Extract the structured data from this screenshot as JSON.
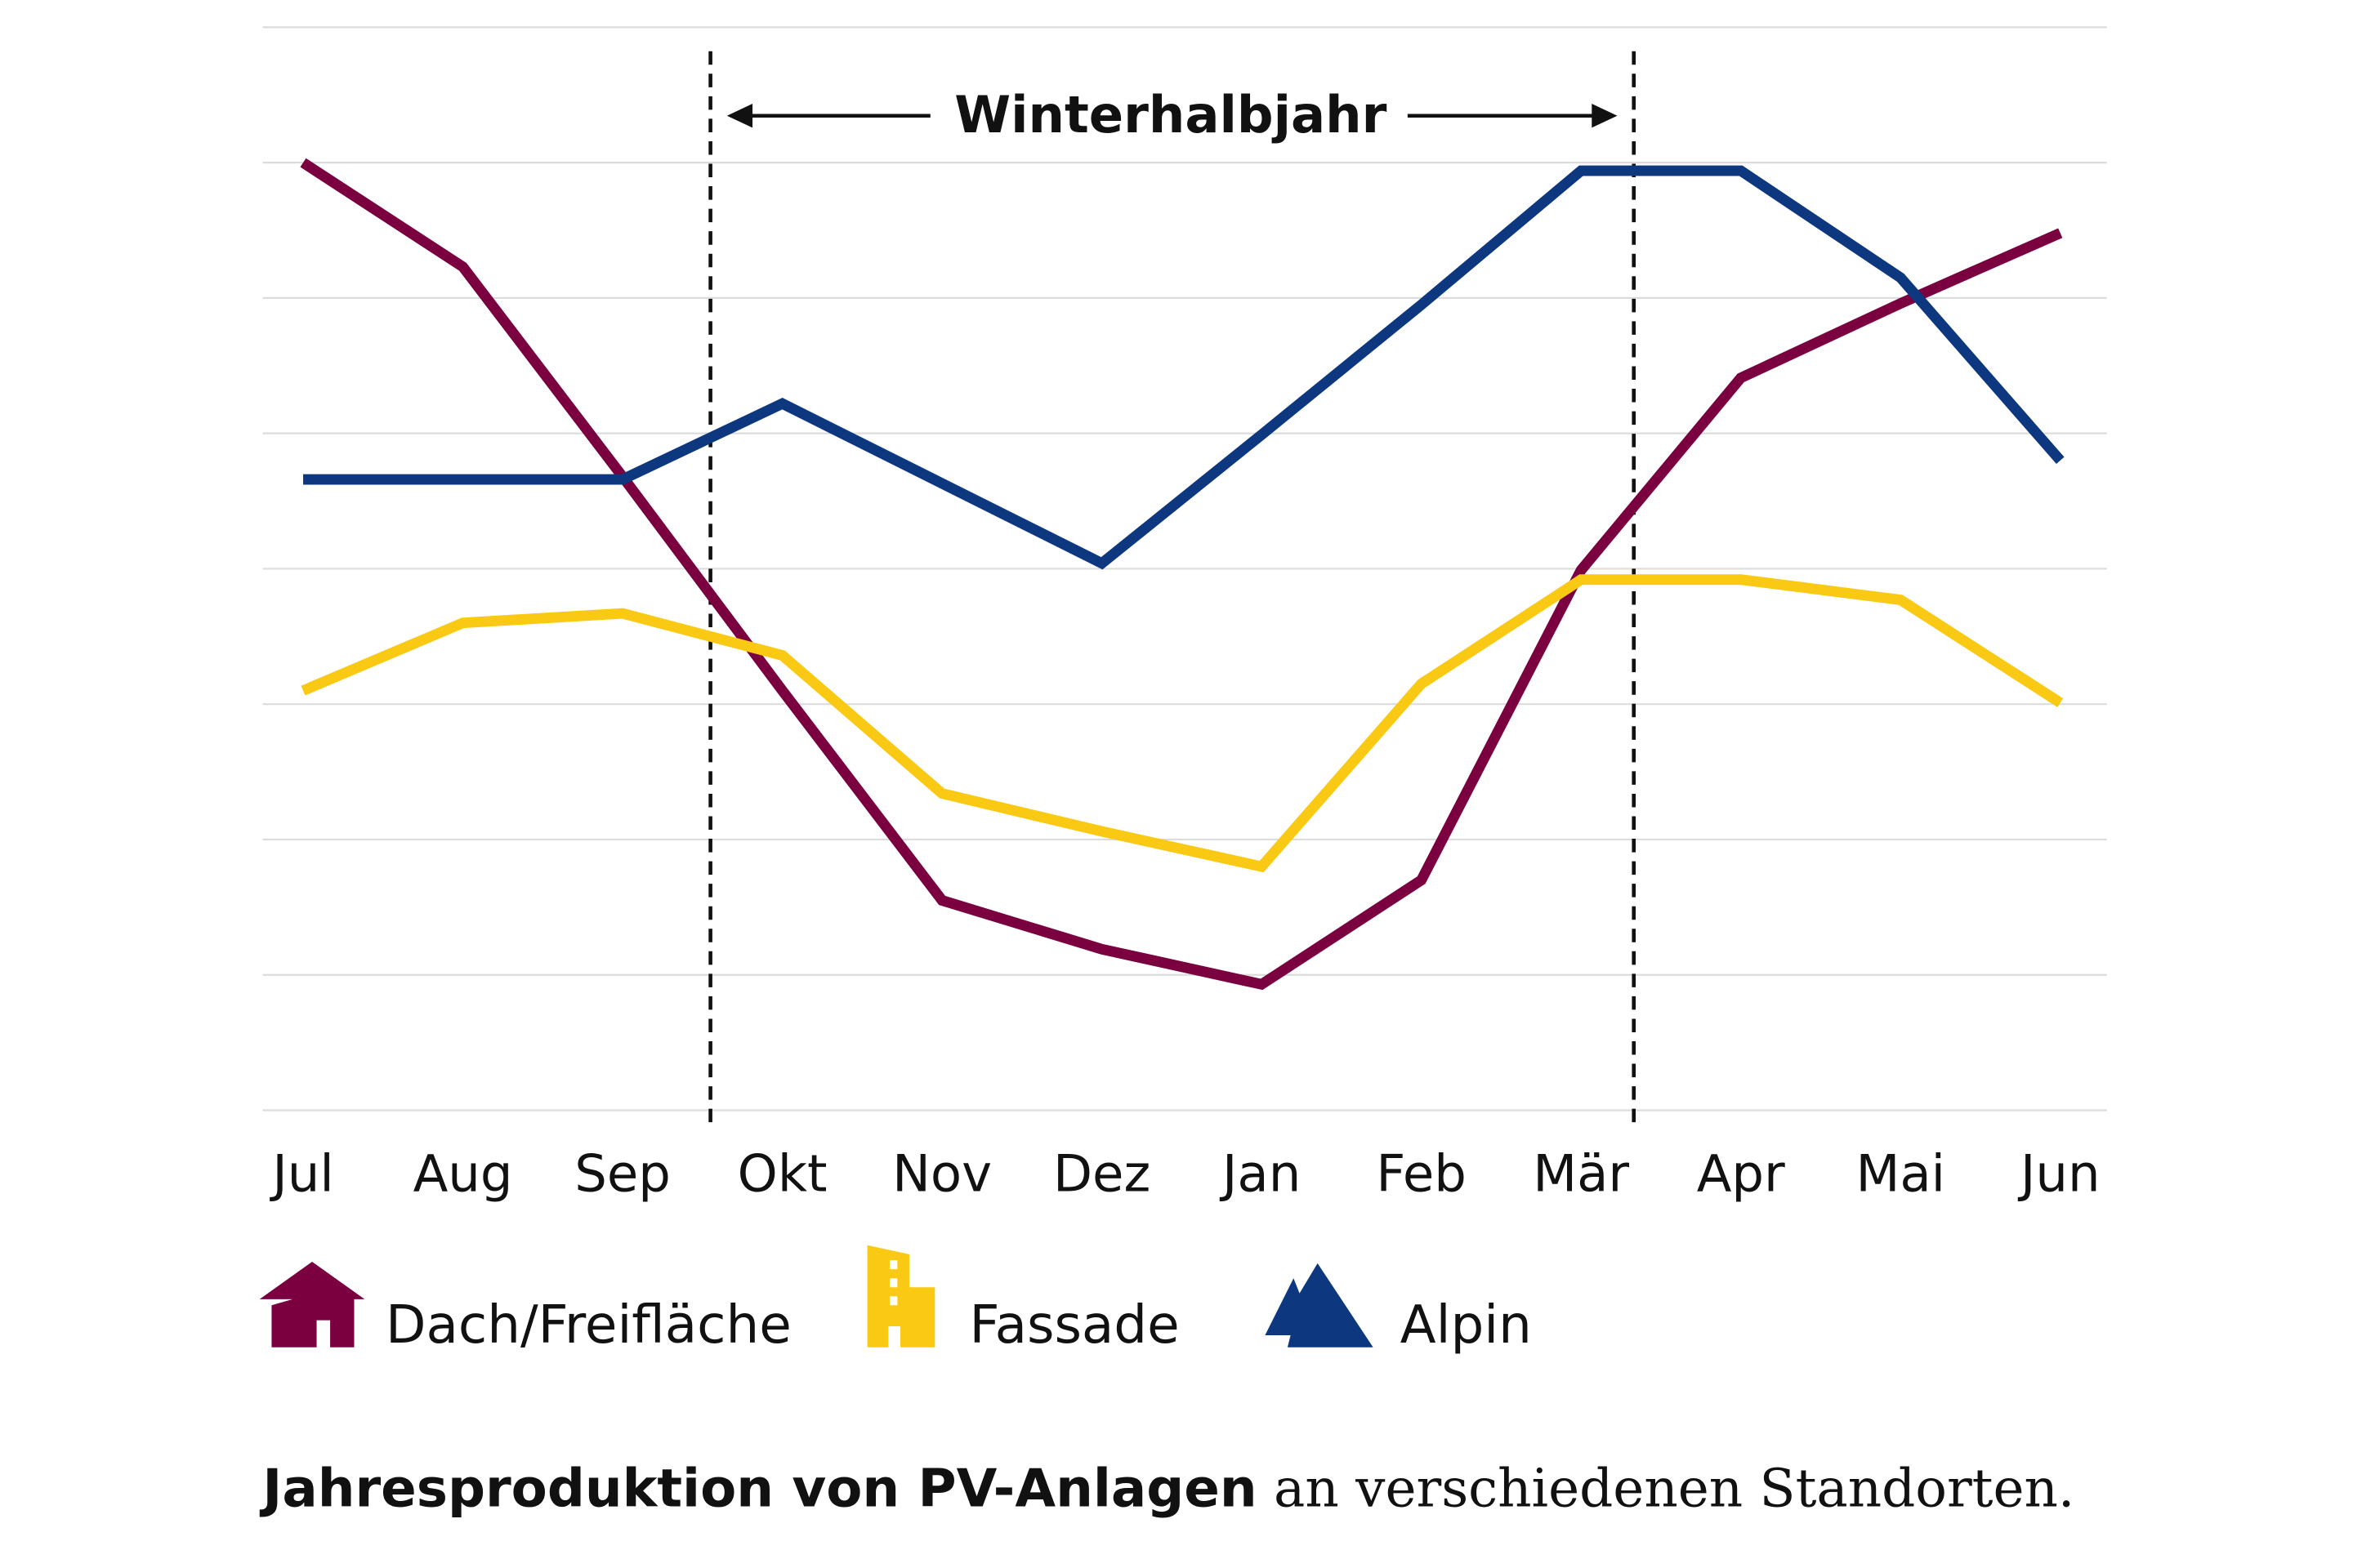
{
  "chart_data": {
    "type": "line",
    "title": "",
    "xlabel": "",
    "ylabel": "",
    "categories": [
      "Jul",
      "Aug",
      "Sep",
      "Okt",
      "Nov",
      "Dez",
      "Jan",
      "Feb",
      "Mär",
      "Apr",
      "Mai",
      "Jun"
    ],
    "ylim": [
      0,
      8
    ],
    "y_tick_labels_shown": false,
    "grid": "horizontal",
    "series": [
      {
        "name": "Dach/Freifläche",
        "color": "#7a0040",
        "icon": "house-icon",
        "values": [
          7.0,
          6.23,
          4.68,
          3.1,
          1.55,
          1.19,
          0.93,
          1.7,
          3.99,
          5.41,
          5.96,
          6.48
        ]
      },
      {
        "name": "Fassade",
        "color": "#f9c914",
        "icon": "building-icon",
        "values": [
          3.1,
          3.6,
          3.67,
          3.36,
          2.34,
          2.06,
          1.8,
          3.15,
          3.92,
          3.92,
          3.77,
          3.01
        ]
      },
      {
        "name": "Alpin",
        "color": "#0d3880",
        "icon": "mountain-icon",
        "values": [
          4.66,
          4.66,
          4.66,
          5.22,
          4.63,
          4.04,
          4.99,
          5.95,
          6.94,
          6.94,
          6.15,
          4.8
        ]
      }
    ],
    "annotation": {
      "label": "Winterhalbjahr",
      "start_month_index": 2.55,
      "end_month_index": 8.33
    },
    "legend_placement": "bottom",
    "caption": {
      "bold": "Jahresproduktion von PV-Anlagen",
      "regular": " an verschiedenen Standorten."
    }
  }
}
